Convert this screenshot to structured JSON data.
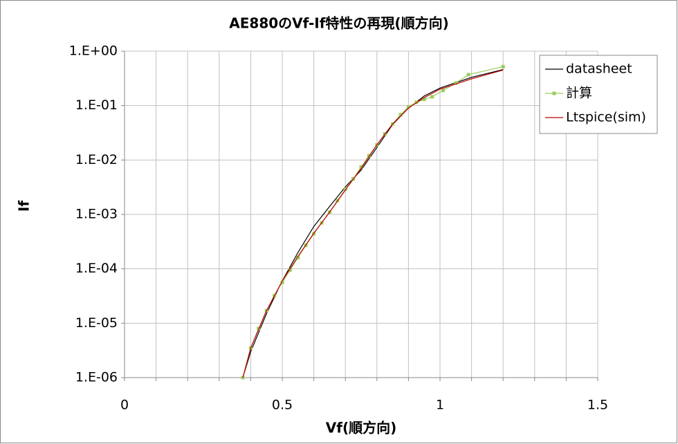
{
  "chart_data": {
    "type": "line",
    "title": "AE880のVf-If特性の再現(順方向)",
    "x_label": "Vf(順方向)",
    "y_label": "If",
    "log_y": true,
    "grid": true,
    "legend_position": "upper-right",
    "xlim": [
      0,
      1.5
    ],
    "xticks": [
      0,
      0.5,
      1,
      1.5
    ],
    "x_minor_grid": [
      0.1,
      0.2,
      0.3,
      0.4,
      0.6,
      0.7,
      0.8,
      0.9,
      1.1,
      1.2,
      1.3,
      1.4
    ],
    "ylim": [
      1e-06,
      1
    ],
    "yticks": [
      {
        "value": 1,
        "label": "1.E+00"
      },
      {
        "value": 0.1,
        "label": "1.E-01"
      },
      {
        "value": 0.01,
        "label": "1.E-02"
      },
      {
        "value": 0.001,
        "label": "1.E-03"
      },
      {
        "value": 0.0001,
        "label": "1.E-04"
      },
      {
        "value": 1e-05,
        "label": "1.E-05"
      },
      {
        "value": 1e-06,
        "label": "1.E-06"
      }
    ],
    "series": [
      {
        "name": "datasheet",
        "color": "#000000",
        "marker": "none",
        "x": [
          0.375,
          0.4,
          0.45,
          0.5,
          0.55,
          0.6,
          0.65,
          0.7,
          0.75,
          0.8,
          0.85,
          0.9,
          0.95,
          1.0,
          1.1,
          1.2
        ],
        "values": [
          1e-06,
          3e-06,
          1.5e-05,
          6e-05,
          0.0002,
          0.0006,
          0.0014,
          0.0032,
          0.0065,
          0.017,
          0.045,
          0.09,
          0.15,
          0.21,
          0.33,
          0.46
        ]
      },
      {
        "name": "計算",
        "color": "#9bcd5a",
        "marker": "square",
        "x": [
          0.375,
          0.4,
          0.425,
          0.45,
          0.475,
          0.5,
          0.525,
          0.55,
          0.575,
          0.6,
          0.625,
          0.65,
          0.675,
          0.7,
          0.725,
          0.75,
          0.775,
          0.8,
          0.825,
          0.85,
          0.875,
          0.9,
          0.925,
          0.95,
          0.975,
          1.01,
          1.05,
          1.09,
          1.2
        ],
        "values": [
          1e-06,
          3.5e-06,
          8e-06,
          1.7e-05,
          3.2e-05,
          5.6e-05,
          9.5e-05,
          0.00016,
          0.00027,
          0.00044,
          0.0007,
          0.0011,
          0.0018,
          0.0029,
          0.0045,
          0.0075,
          0.012,
          0.019,
          0.03,
          0.046,
          0.068,
          0.095,
          0.115,
          0.13,
          0.145,
          0.19,
          0.26,
          0.37,
          0.52
        ]
      },
      {
        "name": "Ltspice(sim)",
        "color": "#c00000",
        "marker": "none",
        "x": [
          0.375,
          0.4,
          0.45,
          0.5,
          0.55,
          0.6,
          0.65,
          0.7,
          0.75,
          0.8,
          0.85,
          0.9,
          0.95,
          1.0,
          1.1,
          1.2
        ],
        "values": [
          1e-06,
          3.5e-06,
          1.7e-05,
          6e-05,
          0.00017,
          0.00045,
          0.0011,
          0.0028,
          0.007,
          0.019,
          0.046,
          0.09,
          0.14,
          0.2,
          0.31,
          0.45
        ]
      }
    ]
  }
}
